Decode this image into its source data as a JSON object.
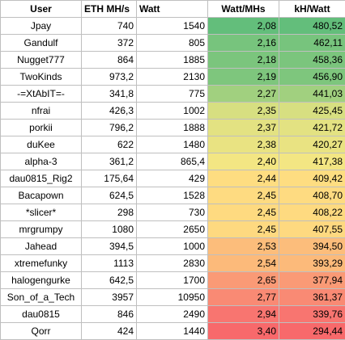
{
  "header": {
    "user": "User",
    "eth": "ETH MH/s",
    "watt": "Watt",
    "watt_mhs": "Watt/MHs",
    "kh_watt": "kH/Watt"
  },
  "rows": [
    {
      "user": "Jpay",
      "eth": "740",
      "watt": "1540",
      "watt_mhs": "2,08",
      "kh_watt": "480,52",
      "color": "#63be7b"
    },
    {
      "user": "Gandulf",
      "eth": "372",
      "watt": "805",
      "watt_mhs": "2,16",
      "kh_watt": "462,11",
      "color": "#77c47d"
    },
    {
      "user": "Nugget777",
      "eth": "864",
      "watt": "1885",
      "watt_mhs": "2,18",
      "kh_watt": "458,36",
      "color": "#7bc57d"
    },
    {
      "user": "TwoKinds",
      "eth": "973,2",
      "watt": "2130",
      "watt_mhs": "2,19",
      "kh_watt": "456,90",
      "color": "#7ec67d"
    },
    {
      "user": "-=XtAbIT=-",
      "eth": "341,8",
      "watt": "775",
      "watt_mhs": "2,27",
      "kh_watt": "441,03",
      "color": "#a1d07f"
    },
    {
      "user": "nfrai",
      "eth": "426,3",
      "watt": "1002",
      "watt_mhs": "2,35",
      "kh_watt": "425,45",
      "color": "#d7df81"
    },
    {
      "user": "porkii",
      "eth": "796,2",
      "watt": "1888",
      "watt_mhs": "2,37",
      "kh_watt": "421,72",
      "color": "#e3e282"
    },
    {
      "user": "duKee",
      "eth": "622",
      "watt": "1480",
      "watt_mhs": "2,38",
      "kh_watt": "420,27",
      "color": "#e9e382"
    },
    {
      "user": "alpha-3",
      "eth": "361,2",
      "watt": "865,4",
      "watt_mhs": "2,40",
      "kh_watt": "417,38",
      "color": "#f3e683"
    },
    {
      "user": "dau0815_Rig2",
      "eth": "175,64",
      "watt": "429",
      "watt_mhs": "2,44",
      "kh_watt": "409,42",
      "color": "#fedd81"
    },
    {
      "user": "Bacapown",
      "eth": "624,5",
      "watt": "1528",
      "watt_mhs": "2,45",
      "kh_watt": "408,70",
      "color": "#fedb81"
    },
    {
      "user": "*slicer*",
      "eth": "298",
      "watt": "730",
      "watt_mhs": "2,45",
      "kh_watt": "408,22",
      "color": "#feda80"
    },
    {
      "user": "mrgrumpy",
      "eth": "1080",
      "watt": "2650",
      "watt_mhs": "2,45",
      "kh_watt": "407,55",
      "color": "#fed980"
    },
    {
      "user": "Jahead",
      "eth": "394,5",
      "watt": "1000",
      "watt_mhs": "2,53",
      "kh_watt": "394,50",
      "color": "#fcbd7b"
    },
    {
      "user": "xtremefunky",
      "eth": "1113",
      "watt": "2830",
      "watt_mhs": "2,54",
      "kh_watt": "393,29",
      "color": "#fcba7a"
    },
    {
      "user": "halogengurke",
      "eth": "642,5",
      "watt": "1700",
      "watt_mhs": "2,65",
      "kh_watt": "377,94",
      "color": "#fa9a76"
    },
    {
      "user": "Son_of_a_Tech",
      "eth": "3957",
      "watt": "10950",
      "watt_mhs": "2,77",
      "kh_watt": "361,37",
      "color": "#f98a74"
    },
    {
      "user": "dau0815",
      "eth": "846",
      "watt": "2490",
      "watt_mhs": "2,94",
      "kh_watt": "339,76",
      "color": "#f87570"
    },
    {
      "user": "Qorr",
      "eth": "424",
      "watt": "1440",
      "watt_mhs": "3,40",
      "kh_watt": "294,44",
      "color": "#f8696b"
    }
  ]
}
